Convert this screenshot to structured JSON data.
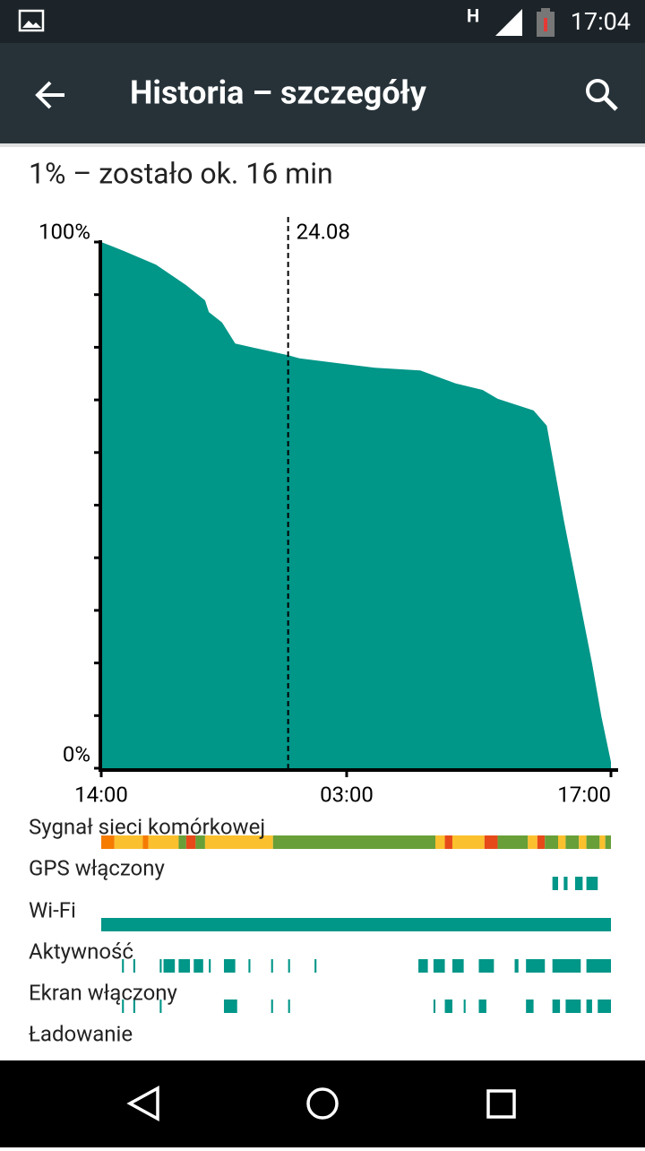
{
  "status_bar": {
    "network": "H",
    "time": "17:04"
  },
  "app_bar": {
    "title": "Historia – szczegóły"
  },
  "summary": "1% – zostało ok. 16 min",
  "chart_data": {
    "type": "area",
    "color": "#009688",
    "x": [
      0,
      1.2,
      2.9,
      4.5,
      5.5,
      5.7,
      6.4,
      7.1,
      8.1,
      9.9,
      10.5,
      14.5,
      16.9,
      18.8,
      20.2,
      21.0,
      22.9,
      23.6,
      24.5,
      26.0,
      26.5,
      27.0
    ],
    "values": [
      100,
      98.3,
      95.7,
      91.8,
      88.9,
      86.7,
      84.7,
      80.7,
      79.9,
      78.5,
      77.9,
      76.1,
      75.6,
      73.1,
      71.9,
      70.2,
      68.0,
      65.1,
      47.2,
      19.9,
      9.7,
      1.2
    ],
    "xlim": [
      0,
      27
    ],
    "ylim": [
      0,
      100
    ],
    "xticks": [
      {
        "value": 0,
        "label": "14:00"
      },
      {
        "value": 13,
        "label": "03:00"
      },
      {
        "value": 27,
        "label": "17:00"
      }
    ],
    "yticks": [
      {
        "value": 0,
        "label": "0%"
      },
      {
        "value": 100,
        "label": "100%"
      }
    ],
    "yminorticks": [
      10,
      20,
      30,
      40,
      50,
      60,
      70,
      80,
      90
    ],
    "annotations": [
      {
        "x": 9.9,
        "label": "24.08"
      }
    ]
  },
  "events": [
    {
      "name": "Sygnał sieci komórkowej",
      "color": "#689f38",
      "segments": [
        [
          0,
          0.7
        ],
        [
          0.7,
          2.2
        ],
        [
          2.2,
          2.5
        ],
        [
          2.5,
          4.1
        ],
        [
          4.1,
          4.5
        ],
        [
          4.5,
          5.0
        ],
        [
          5.0,
          5.5
        ],
        [
          5.5,
          9.1
        ],
        [
          9.1,
          17.7
        ],
        [
          17.7,
          18.2
        ],
        [
          18.2,
          18.6
        ],
        [
          18.6,
          20.3
        ],
        [
          20.3,
          21.0
        ],
        [
          21.0,
          22.6
        ],
        [
          22.6,
          23.1
        ],
        [
          23.1,
          23.5
        ],
        [
          23.5,
          24.2
        ],
        [
          24.2,
          24.6
        ],
        [
          24.6,
          25.3
        ],
        [
          25.3,
          25.7
        ],
        [
          25.7,
          26.4
        ],
        [
          26.4,
          26.7
        ],
        [
          26.7,
          27.0
        ]
      ],
      "colors": [
        "#f57c00",
        "#fbc02d",
        "#f57c00",
        "#fbc02d",
        "#689f38",
        "#e64a19",
        "#689f38",
        "#fbc02d",
        "#689f38",
        "#fbc02d",
        "#e64a19",
        "#fbc02d",
        "#e64a19",
        "#689f38",
        "#fbc02d",
        "#e64a19",
        "#689f38",
        "#fbc02d",
        "#689f38",
        "#fbc02d",
        "#689f38",
        "#fbc02d",
        "#689f38"
      ]
    },
    {
      "name": "GPS włączony",
      "color": "#009688",
      "segments": [
        [
          23.9,
          24.2
        ],
        [
          24.5,
          24.7
        ],
        [
          25.1,
          25.5
        ],
        [
          25.7,
          26.3
        ]
      ]
    },
    {
      "name": "Wi-Fi",
      "color": "#009688",
      "segments": [
        [
          0,
          27
        ]
      ]
    },
    {
      "name": "Aktywność",
      "color": "#009688",
      "segments": [
        [
          1.1,
          1.2
        ],
        [
          1.7,
          1.8
        ],
        [
          3.1,
          3.2
        ],
        [
          3.3,
          3.9
        ],
        [
          4.1,
          4.7
        ],
        [
          4.9,
          5.4
        ],
        [
          5.7,
          5.8
        ],
        [
          6.5,
          7.1
        ],
        [
          7.8,
          7.9
        ],
        [
          9.0,
          9.1
        ],
        [
          9.9,
          10.0
        ],
        [
          11.3,
          11.4
        ],
        [
          16.8,
          17.3
        ],
        [
          17.6,
          18.2
        ],
        [
          18.6,
          19.2
        ],
        [
          20.0,
          20.8
        ],
        [
          21.9,
          22.1
        ],
        [
          22.5,
          23.5
        ],
        [
          23.9,
          25.4
        ],
        [
          25.7,
          27.0
        ]
      ]
    },
    {
      "name": "Ekran włączony",
      "color": "#009688",
      "segments": [
        [
          1.1,
          1.2
        ],
        [
          1.7,
          1.8
        ],
        [
          3.1,
          3.2
        ],
        [
          6.5,
          7.2
        ],
        [
          9.0,
          9.1
        ],
        [
          9.9,
          10.0
        ],
        [
          17.6,
          17.7
        ],
        [
          18.2,
          18.6
        ],
        [
          19.2,
          19.3
        ],
        [
          20.0,
          20.4
        ],
        [
          22.5,
          22.9
        ],
        [
          23.9,
          24.3
        ],
        [
          24.6,
          25.4
        ],
        [
          25.7,
          26.0
        ],
        [
          26.3,
          27.0
        ]
      ]
    },
    {
      "name": "Ładowanie",
      "color": "#009688",
      "segments": []
    }
  ]
}
